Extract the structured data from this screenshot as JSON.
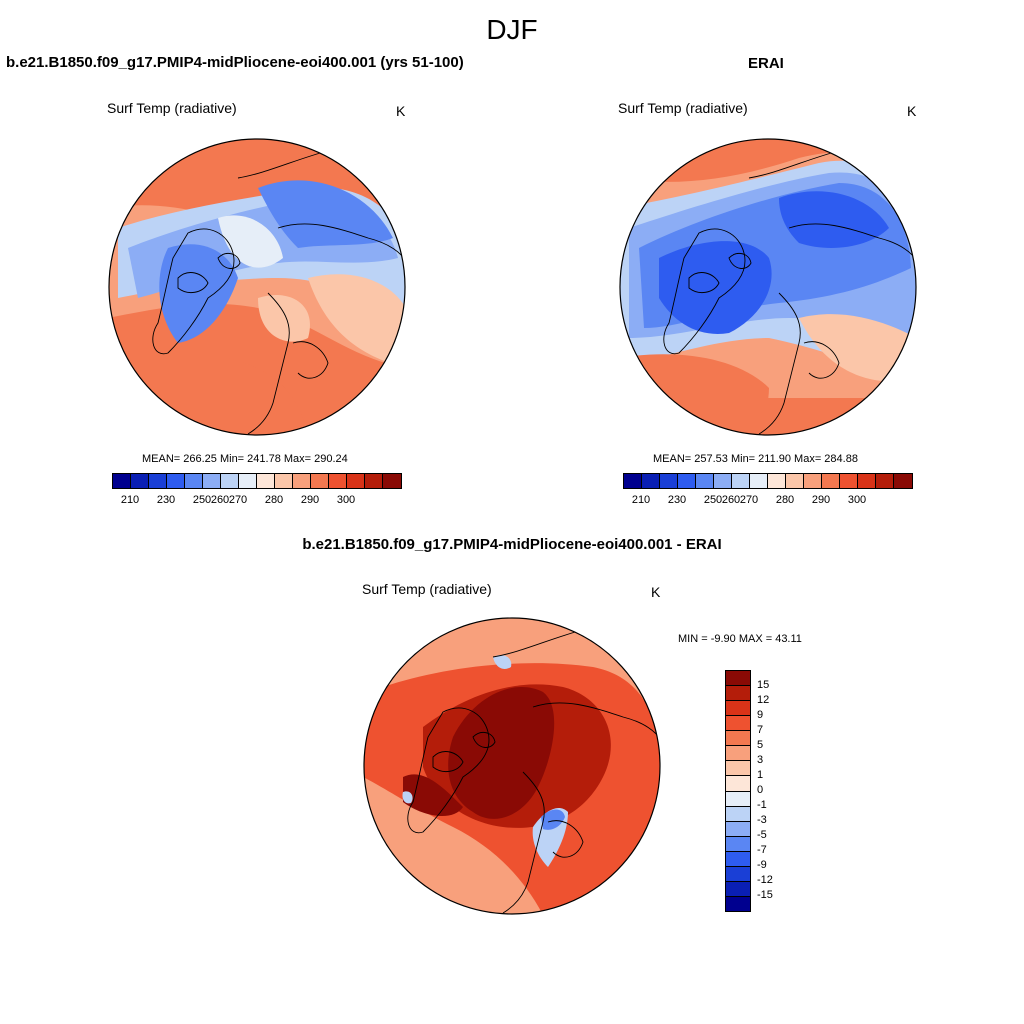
{
  "main_title": "DJF",
  "panels": [
    {
      "title": "b.e21.B1850.f09_g17.PMIP4-midPliocene-eoi400.001 (yrs 51-100)",
      "variable": "Surf Temp (radiative)",
      "units": "K",
      "stats": "MEAN= 266.25  Min= 241.78  Max= 290.24"
    },
    {
      "title": "ERAI",
      "variable": "Surf Temp (radiative)",
      "units": "K",
      "stats": "MEAN= 257.53  Min= 211.90  Max= 284.88"
    },
    {
      "title": "b.e21.B1850.f09_g17.PMIP4-midPliocene-eoi400.001 - ERAI",
      "variable": "Surf Temp (radiative)",
      "units": "K",
      "stats": "MIN =  -9.90 MAX =  43.11"
    }
  ],
  "abs_colorbar": {
    "colors": [
      "#00008f",
      "#0a1fb4",
      "#1a3fd6",
      "#2e5cf0",
      "#5a86f3",
      "#8cadf5",
      "#bcd3f6",
      "#e6eef8",
      "#fde6d8",
      "#fbc6a9",
      "#f8a07c",
      "#f37850",
      "#ee5230",
      "#d93318",
      "#b41d0a",
      "#8a0a05"
    ],
    "ticks": [
      "210",
      "230",
      "250",
      "260",
      "270",
      "280",
      "290",
      "300"
    ]
  },
  "diff_colorbar": {
    "colors": [
      "#8a0a05",
      "#b41d0a",
      "#d93318",
      "#ee5230",
      "#f37850",
      "#f8a07c",
      "#fbc6a9",
      "#fde6d8",
      "#e6eef8",
      "#bcd3f6",
      "#8cadf5",
      "#5a86f3",
      "#2e5cf0",
      "#1a3fd6",
      "#0a1fb4",
      "#00008f"
    ],
    "ticks": [
      "15",
      "12",
      "9",
      "7",
      "5",
      "3",
      "1",
      "0",
      "-1",
      "-3",
      "-5",
      "-7",
      "-9",
      "-12",
      "-15"
    ]
  },
  "map_colors": {
    "warm_far": "#f37850",
    "warm_mid": "#f8a07c",
    "warm_near": "#fbc6a9",
    "neutral": "#e6eef8",
    "cool_light": "#bcd3f6",
    "cool_mid": "#8cadf5",
    "cool": "#5a86f3",
    "cool_deep": "#2e5cf0",
    "diff_bg": "#ee5230",
    "diff_light": "#f8a07c",
    "diff_core": "#8a0a05",
    "diff_dark": "#b41d0a"
  }
}
